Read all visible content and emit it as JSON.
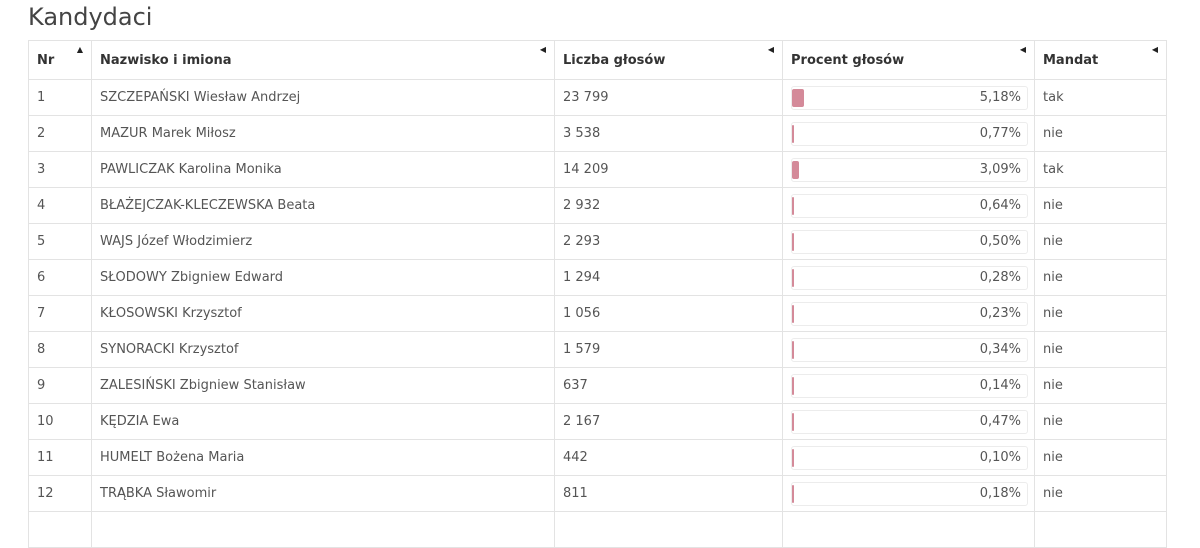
{
  "title": "Kandydaci",
  "columns": {
    "nr": "Nr",
    "name": "Nazwisko i imiona",
    "votes": "Liczba głosów",
    "percent": "Procent głosów",
    "mandate": "Mandat"
  },
  "sort_icons": {
    "asc": "▲",
    "none": "◀"
  },
  "colors": {
    "bar": "#d48a99"
  },
  "rows": [
    {
      "nr": "1",
      "name": "SZCZEPAŃSKI Wiesław Andrzej",
      "votes": "23 799",
      "percent": "5,18%",
      "fraction": 0.0518,
      "mandate": "tak"
    },
    {
      "nr": "2",
      "name": "MAZUR Marek Miłosz",
      "votes": "3 538",
      "percent": "0,77%",
      "fraction": 0.0077,
      "mandate": "nie"
    },
    {
      "nr": "3",
      "name": "PAWLICZAK Karolina Monika",
      "votes": "14 209",
      "percent": "3,09%",
      "fraction": 0.0309,
      "mandate": "tak"
    },
    {
      "nr": "4",
      "name": "BŁAŻEJCZAK-KLECZEWSKA Beata",
      "votes": "2 932",
      "percent": "0,64%",
      "fraction": 0.0064,
      "mandate": "nie"
    },
    {
      "nr": "5",
      "name": "WAJS Józef Włodzimierz",
      "votes": "2 293",
      "percent": "0,50%",
      "fraction": 0.005,
      "mandate": "nie"
    },
    {
      "nr": "6",
      "name": "SŁODOWY Zbigniew Edward",
      "votes": "1 294",
      "percent": "0,28%",
      "fraction": 0.0028,
      "mandate": "nie"
    },
    {
      "nr": "7",
      "name": "KŁOSOWSKI Krzysztof",
      "votes": "1 056",
      "percent": "0,23%",
      "fraction": 0.0023,
      "mandate": "nie"
    },
    {
      "nr": "8",
      "name": "SYNORACKI Krzysztof",
      "votes": "1 579",
      "percent": "0,34%",
      "fraction": 0.0034,
      "mandate": "nie"
    },
    {
      "nr": "9",
      "name": "ZALESIŃSKI Zbigniew Stanisław",
      "votes": "637",
      "percent": "0,14%",
      "fraction": 0.0014,
      "mandate": "nie"
    },
    {
      "nr": "10",
      "name": "KĘDZIA Ewa",
      "votes": "2 167",
      "percent": "0,47%",
      "fraction": 0.0047,
      "mandate": "nie"
    },
    {
      "nr": "11",
      "name": "HUMELT Bożena Maria",
      "votes": "442",
      "percent": "0,10%",
      "fraction": 0.001,
      "mandate": "nie"
    },
    {
      "nr": "12",
      "name": "TRĄBKA Sławomir",
      "votes": "811",
      "percent": "0,18%",
      "fraction": 0.0018,
      "mandate": "nie"
    }
  ]
}
